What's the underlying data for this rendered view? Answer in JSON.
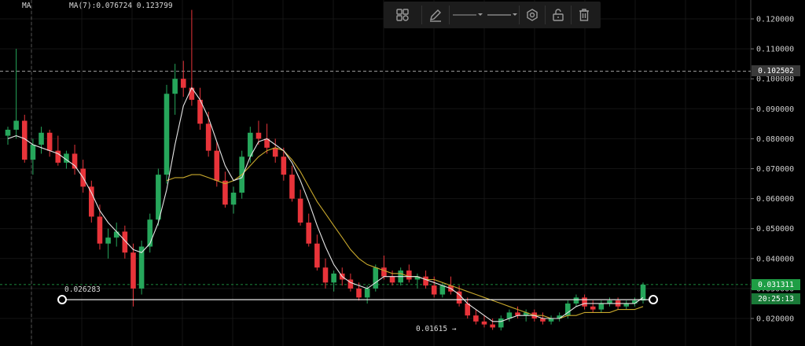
{
  "header": {
    "indicator_name": "MA",
    "indicator_values": "MA(7):0.076724 0.123799"
  },
  "toolbar": {
    "icons": [
      "grid-icon",
      "pencil-icon",
      "line-style-dropdown",
      "line-width-dropdown",
      "settings-icon",
      "lock-icon",
      "trash-icon"
    ]
  },
  "annotations": {
    "support_level_label": "0.026283",
    "low_label": "0.01615 →"
  },
  "price_tags": {
    "crosshair": "0.102502",
    "last": "0.031311",
    "countdown": "20:25:13"
  },
  "colors": {
    "up": "#26a65b",
    "down": "#e8343a",
    "ma_fast": "#e6e6e6",
    "ma_slow": "#c8a82c",
    "background": "#000000",
    "grid": "#151515",
    "last_tag": "#1e9e45"
  },
  "chart_data": {
    "type": "candlestick",
    "ylim": [
      0.0155,
      0.1235
    ],
    "y_ticks": [
      "0.120000",
      "0.110000",
      "0.100000",
      "0.090000",
      "0.080000",
      "0.070000",
      "0.060000",
      "0.050000",
      "0.040000",
      "0.030000",
      "0.020000"
    ],
    "crosshair_price": 0.102502,
    "last_price": 0.031311,
    "horizontal_line": 0.026283,
    "ohlc": [
      [
        0.081,
        0.084,
        0.078,
        0.083
      ],
      [
        0.083,
        0.11,
        0.08,
        0.086
      ],
      [
        0.086,
        0.088,
        0.072,
        0.073
      ],
      [
        0.073,
        0.08,
        0.068,
        0.078
      ],
      [
        0.078,
        0.084,
        0.075,
        0.082
      ],
      [
        0.082,
        0.083,
        0.074,
        0.076
      ],
      [
        0.076,
        0.081,
        0.071,
        0.072
      ],
      [
        0.072,
        0.076,
        0.07,
        0.075
      ],
      [
        0.075,
        0.078,
        0.068,
        0.07
      ],
      [
        0.07,
        0.073,
        0.062,
        0.064
      ],
      [
        0.064,
        0.066,
        0.052,
        0.054
      ],
      [
        0.054,
        0.058,
        0.043,
        0.045
      ],
      [
        0.045,
        0.05,
        0.04,
        0.047
      ],
      [
        0.047,
        0.052,
        0.044,
        0.049
      ],
      [
        0.049,
        0.051,
        0.04,
        0.042
      ],
      [
        0.042,
        0.045,
        0.024,
        0.03
      ],
      [
        0.03,
        0.046,
        0.028,
        0.044
      ],
      [
        0.044,
        0.055,
        0.042,
        0.053
      ],
      [
        0.053,
        0.07,
        0.051,
        0.068
      ],
      [
        0.068,
        0.098,
        0.065,
        0.095
      ],
      [
        0.095,
        0.105,
        0.088,
        0.1
      ],
      [
        0.1,
        0.106,
        0.094,
        0.097
      ],
      [
        0.097,
        0.123,
        0.091,
        0.093
      ],
      [
        0.093,
        0.097,
        0.083,
        0.085
      ],
      [
        0.085,
        0.089,
        0.074,
        0.076
      ],
      [
        0.076,
        0.079,
        0.064,
        0.066
      ],
      [
        0.066,
        0.069,
        0.057,
        0.058
      ],
      [
        0.058,
        0.064,
        0.055,
        0.062
      ],
      [
        0.062,
        0.076,
        0.06,
        0.074
      ],
      [
        0.074,
        0.084,
        0.072,
        0.082
      ],
      [
        0.082,
        0.086,
        0.078,
        0.08
      ],
      [
        0.08,
        0.085,
        0.075,
        0.077
      ],
      [
        0.077,
        0.08,
        0.072,
        0.074
      ],
      [
        0.074,
        0.077,
        0.066,
        0.068
      ],
      [
        0.068,
        0.071,
        0.059,
        0.06
      ],
      [
        0.06,
        0.063,
        0.051,
        0.052
      ],
      [
        0.052,
        0.055,
        0.044,
        0.045
      ],
      [
        0.045,
        0.048,
        0.036,
        0.037
      ],
      [
        0.037,
        0.04,
        0.03,
        0.032
      ],
      [
        0.032,
        0.036,
        0.029,
        0.035
      ],
      [
        0.035,
        0.037,
        0.031,
        0.033
      ],
      [
        0.033,
        0.035,
        0.029,
        0.03
      ],
      [
        0.03,
        0.032,
        0.026,
        0.027
      ],
      [
        0.027,
        0.031,
        0.025,
        0.03
      ],
      [
        0.03,
        0.038,
        0.029,
        0.037
      ],
      [
        0.037,
        0.041,
        0.033,
        0.034
      ],
      [
        0.034,
        0.036,
        0.031,
        0.032
      ],
      [
        0.032,
        0.037,
        0.031,
        0.036
      ],
      [
        0.036,
        0.038,
        0.032,
        0.033
      ],
      [
        0.033,
        0.035,
        0.03,
        0.034
      ],
      [
        0.034,
        0.036,
        0.03,
        0.031
      ],
      [
        0.031,
        0.034,
        0.027,
        0.028
      ],
      [
        0.028,
        0.032,
        0.027,
        0.031
      ],
      [
        0.031,
        0.034,
        0.028,
        0.029
      ],
      [
        0.029,
        0.031,
        0.024,
        0.025
      ],
      [
        0.025,
        0.027,
        0.02,
        0.021
      ],
      [
        0.021,
        0.023,
        0.018,
        0.019
      ],
      [
        0.019,
        0.021,
        0.017,
        0.018
      ],
      [
        0.018,
        0.02,
        0.0162,
        0.017
      ],
      [
        0.017,
        0.021,
        0.016,
        0.02
      ],
      [
        0.02,
        0.023,
        0.019,
        0.022
      ],
      [
        0.022,
        0.024,
        0.02,
        0.021
      ],
      [
        0.021,
        0.023,
        0.019,
        0.022
      ],
      [
        0.022,
        0.023,
        0.019,
        0.02
      ],
      [
        0.02,
        0.022,
        0.018,
        0.019
      ],
      [
        0.019,
        0.021,
        0.018,
        0.02
      ],
      [
        0.02,
        0.022,
        0.019,
        0.021
      ],
      [
        0.021,
        0.026,
        0.02,
        0.025
      ],
      [
        0.025,
        0.028,
        0.024,
        0.027
      ],
      [
        0.027,
        0.028,
        0.023,
        0.024
      ],
      [
        0.024,
        0.026,
        0.022,
        0.023
      ],
      [
        0.023,
        0.026,
        0.022,
        0.025
      ],
      [
        0.025,
        0.027,
        0.024,
        0.026
      ],
      [
        0.026,
        0.027,
        0.023,
        0.024
      ],
      [
        0.024,
        0.026,
        0.023,
        0.025
      ],
      [
        0.025,
        0.027,
        0.024,
        0.026
      ],
      [
        0.026,
        0.032,
        0.025,
        0.0313
      ]
    ],
    "ma_fast": [
      0.08,
      0.081,
      0.08,
      0.078,
      0.077,
      0.076,
      0.075,
      0.073,
      0.071,
      0.067,
      0.062,
      0.056,
      0.052,
      0.049,
      0.046,
      0.043,
      0.042,
      0.045,
      0.052,
      0.063,
      0.078,
      0.091,
      0.097,
      0.093,
      0.087,
      0.079,
      0.071,
      0.066,
      0.067,
      0.074,
      0.079,
      0.08,
      0.078,
      0.076,
      0.072,
      0.066,
      0.059,
      0.051,
      0.044,
      0.038,
      0.034,
      0.032,
      0.031,
      0.03,
      0.032,
      0.034,
      0.034,
      0.034,
      0.034,
      0.034,
      0.033,
      0.032,
      0.031,
      0.03,
      0.028,
      0.025,
      0.023,
      0.021,
      0.019,
      0.019,
      0.02,
      0.021,
      0.021,
      0.021,
      0.02,
      0.02,
      0.02,
      0.022,
      0.024,
      0.025,
      0.025,
      0.025,
      0.025,
      0.025,
      0.025,
      0.025,
      0.027
    ],
    "ma_slow": [
      null,
      null,
      null,
      null,
      null,
      null,
      null,
      null,
      null,
      null,
      null,
      null,
      null,
      null,
      null,
      null,
      null,
      null,
      null,
      0.066,
      0.067,
      0.067,
      0.068,
      0.068,
      0.067,
      0.066,
      0.065,
      0.066,
      0.068,
      0.071,
      0.074,
      0.076,
      0.077,
      0.076,
      0.073,
      0.069,
      0.064,
      0.059,
      0.055,
      0.051,
      0.047,
      0.043,
      0.04,
      0.038,
      0.037,
      0.036,
      0.035,
      0.035,
      0.034,
      0.034,
      0.033,
      0.033,
      0.032,
      0.031,
      0.03,
      0.029,
      0.028,
      0.027,
      0.026,
      0.025,
      0.024,
      0.023,
      0.022,
      0.021,
      0.021,
      0.02,
      0.02,
      0.021,
      0.021,
      0.022,
      0.022,
      0.022,
      0.022,
      0.023,
      0.023,
      0.023,
      0.024
    ]
  }
}
